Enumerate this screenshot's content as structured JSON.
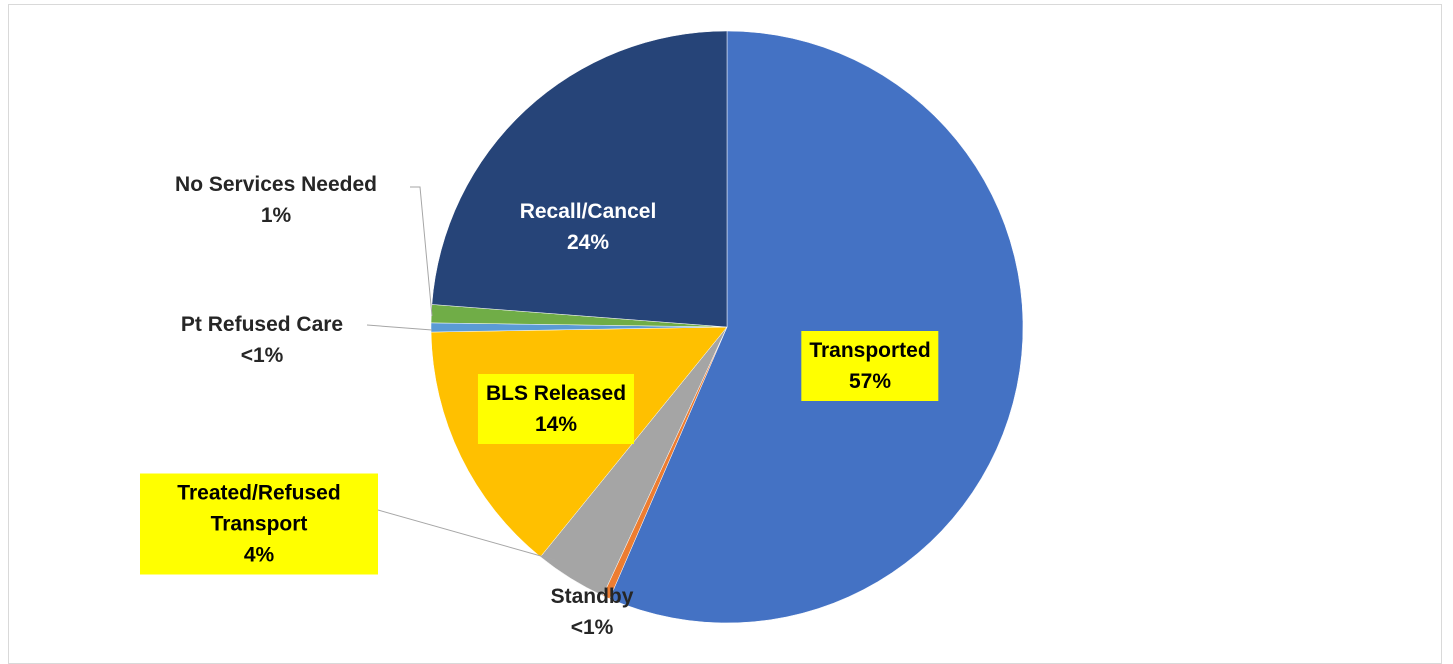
{
  "chart_data": {
    "type": "pie",
    "categories": [
      "Transported",
      "Standby",
      "Treated/Refused Transport",
      "BLS Released",
      "Pt Refused Care",
      "No Services Needed",
      "Recall/Cancel"
    ],
    "values": [
      57,
      0.4,
      4,
      14,
      0.5,
      1,
      24
    ],
    "value_labels": [
      "57%",
      "<1%",
      "4%",
      "14%",
      "<1%",
      "1%",
      "24%"
    ],
    "colors": [
      "#4472c4",
      "#ed7d31",
      "#a5a5a5",
      "#ffc000",
      "#5b9bd5",
      "#70ad47",
      "#264478"
    ]
  }
}
